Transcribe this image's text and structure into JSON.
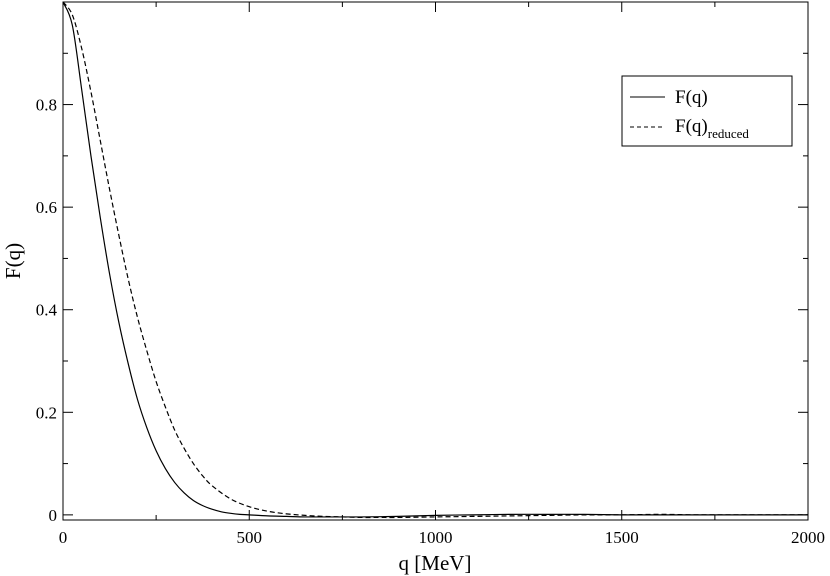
{
  "chart_data": {
    "type": "line",
    "xlabel": "q [MeV]",
    "ylabel": "F(q)",
    "xlim": [
      0,
      2000
    ],
    "ylim": [
      -0.01,
      1.0
    ],
    "xticks": [
      0,
      500,
      1000,
      1500,
      2000
    ],
    "xtick_labels": [
      "0",
      "500",
      "1000",
      "1500",
      "2000"
    ],
    "yticks": [
      0,
      0.2,
      0.4,
      0.6,
      0.8
    ],
    "ytick_labels": [
      "0",
      "0.2",
      "0.4",
      "0.6",
      "0.8"
    ],
    "grid": false,
    "legend_position": "top-right",
    "series": [
      {
        "name": "F(q)",
        "style": "solid",
        "color": "#000000",
        "x": [
          0,
          25,
          50,
          75,
          100,
          125,
          150,
          175,
          200,
          225,
          250,
          275,
          300,
          325,
          350,
          375,
          400,
          425,
          450,
          475,
          500,
          550,
          600,
          650,
          700,
          750,
          800,
          900,
          1000,
          1100,
          1200,
          1300,
          1400,
          1500,
          1600,
          1700,
          1800,
          1900,
          2000
        ],
        "y": [
          1.0,
          0.955,
          0.83,
          0.7,
          0.58,
          0.47,
          0.375,
          0.295,
          0.225,
          0.17,
          0.125,
          0.09,
          0.063,
          0.043,
          0.028,
          0.018,
          0.011,
          0.006,
          0.003,
          0.001,
          0.0,
          -0.002,
          -0.003,
          -0.004,
          -0.004,
          -0.004,
          -0.004,
          -0.003,
          -0.001,
          0.0,
          0.001,
          0.001,
          0.001,
          0.0,
          0.0,
          0.0,
          0.0,
          0.0,
          0.0
        ]
      },
      {
        "name": "F(q)",
        "name_subscript": "reduced",
        "style": "dashed",
        "color": "#000000",
        "x": [
          0,
          25,
          50,
          75,
          100,
          125,
          150,
          175,
          200,
          225,
          250,
          275,
          300,
          325,
          350,
          375,
          400,
          450,
          500,
          550,
          600,
          650,
          700,
          750,
          800,
          850,
          900,
          1000,
          1100,
          1200,
          1300,
          1400,
          1500,
          1600,
          1700,
          1800,
          1900,
          2000
        ],
        "y": [
          1.0,
          0.975,
          0.91,
          0.825,
          0.73,
          0.635,
          0.545,
          0.46,
          0.385,
          0.32,
          0.26,
          0.21,
          0.165,
          0.13,
          0.1,
          0.076,
          0.057,
          0.031,
          0.016,
          0.007,
          0.002,
          -0.001,
          -0.003,
          -0.004,
          -0.005,
          -0.005,
          -0.005,
          -0.004,
          -0.003,
          -0.002,
          -0.001,
          0.0,
          0.0,
          0.001,
          0.0,
          0.0,
          0.0,
          0.0
        ]
      }
    ]
  }
}
